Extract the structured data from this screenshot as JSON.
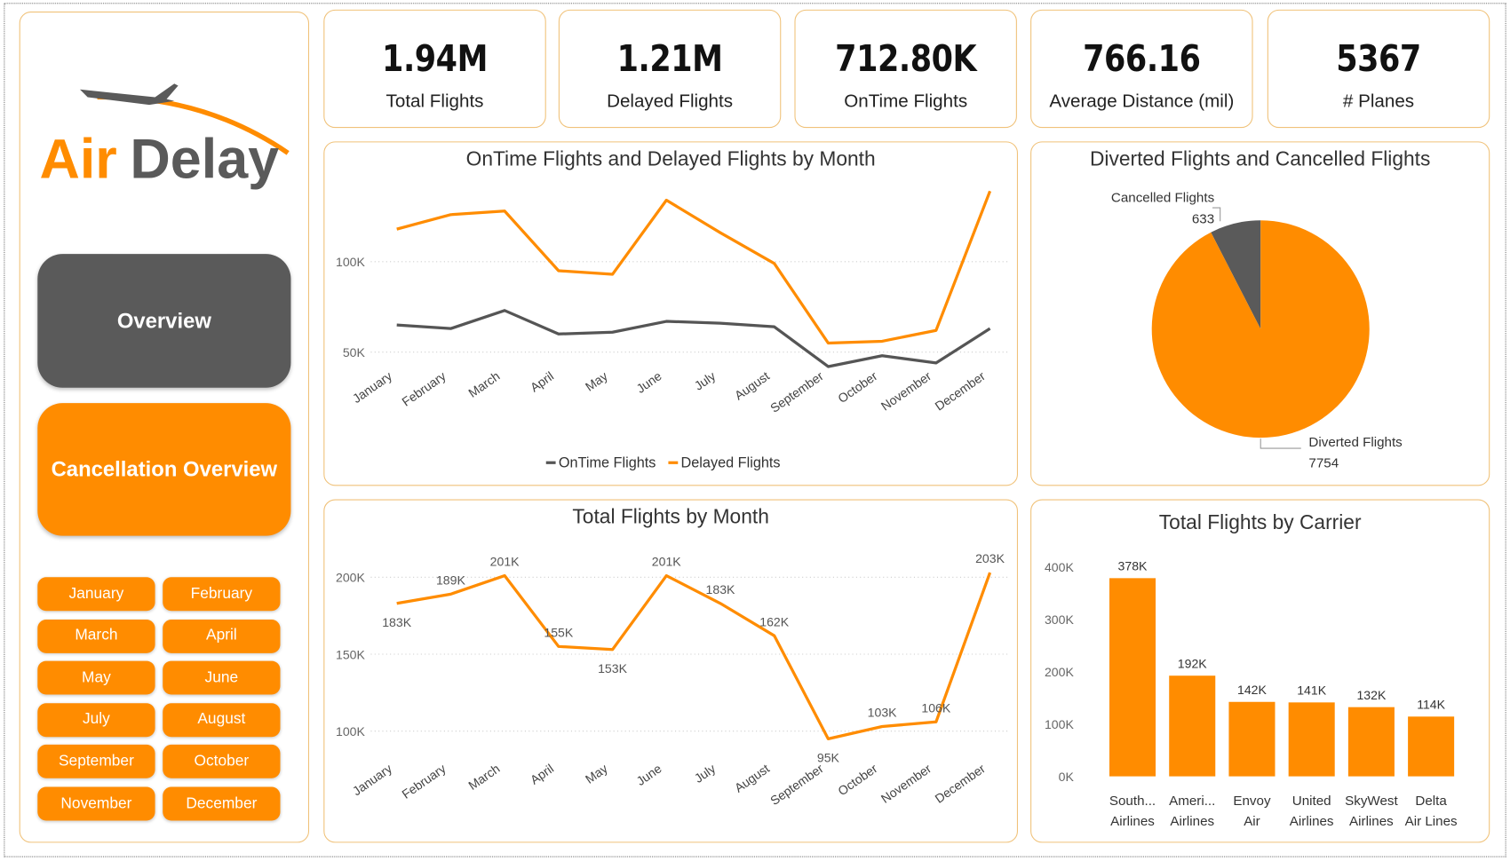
{
  "brand": {
    "logo_text_a": "Air",
    "logo_text_b": "Delay",
    "accent": "#ff8c00",
    "dark": "#5a5a5a"
  },
  "nav": {
    "overview": "Overview",
    "cancellation": "Cancellation Overview"
  },
  "months": [
    "January",
    "February",
    "March",
    "April",
    "May",
    "June",
    "July",
    "August",
    "September",
    "October",
    "November",
    "December"
  ],
  "kpis": [
    {
      "value": "1.94M",
      "label": "Total Flights"
    },
    {
      "value": "1.21M",
      "label": "Delayed Flights"
    },
    {
      "value": "712.80K",
      "label": "OnTime Flights"
    },
    {
      "value": "766.16",
      "label": "Average Distance (mil)"
    },
    {
      "value": "5367",
      "label": "# Planes"
    }
  ],
  "chart_data": [
    {
      "type": "line",
      "title": "OnTime Flights and Delayed Flights by Month",
      "categories": [
        "January",
        "February",
        "March",
        "April",
        "May",
        "June",
        "July",
        "August",
        "September",
        "October",
        "November",
        "December"
      ],
      "yticks": [
        "50K",
        "100K"
      ],
      "ytick_values": [
        50000,
        100000
      ],
      "grid": true,
      "legend": "bottom",
      "series": [
        {
          "name": "OnTime Flights",
          "color": "#555555",
          "values": [
            65000,
            63000,
            73000,
            60000,
            61000,
            67000,
            66000,
            64000,
            42000,
            48000,
            44000,
            63000
          ]
        },
        {
          "name": "Delayed Flights",
          "color": "#ff8c00",
          "values": [
            118000,
            126000,
            128000,
            95000,
            93000,
            134000,
            116000,
            99000,
            55000,
            56000,
            62000,
            139000
          ]
        }
      ]
    },
    {
      "type": "pie",
      "title": "Diverted Flights and Cancelled Flights",
      "slices": [
        {
          "label": "Cancelled Flights",
          "value": 633,
          "color": "#5a5a5a"
        },
        {
          "label": "Diverted Flights",
          "value": 7754,
          "color": "#ff8c00"
        }
      ]
    },
    {
      "type": "line",
      "title": "Total Flights by Month",
      "categories": [
        "January",
        "February",
        "March",
        "April",
        "May",
        "June",
        "July",
        "August",
        "September",
        "October",
        "November",
        "December"
      ],
      "yticks": [
        "100K",
        "150K",
        "200K"
      ],
      "ytick_values": [
        100000,
        150000,
        200000
      ],
      "grid": true,
      "series": [
        {
          "color": "#ff8c00",
          "values": [
            183000,
            189000,
            201000,
            155000,
            153000,
            201000,
            183000,
            162000,
            95000,
            103000,
            106000,
            203000
          ],
          "labels": [
            "183K",
            "189K",
            "201K",
            "155K",
            "153K",
            "201K",
            "183K",
            "162K",
            "95K",
            "103K",
            "106K",
            "203K"
          ]
        }
      ]
    },
    {
      "type": "bar",
      "title": "Total Flights by Carrier",
      "categories": [
        [
          "South...",
          "Airlines"
        ],
        [
          "Ameri...",
          "Airlines"
        ],
        [
          "Envoy",
          "Air"
        ],
        [
          "United",
          "Airlines"
        ],
        [
          "SkyWest",
          "Airlines"
        ],
        [
          "Delta",
          "Air Lines"
        ]
      ],
      "values": [
        378000,
        192000,
        142000,
        141000,
        132000,
        114000
      ],
      "labels": [
        "378K",
        "192K",
        "142K",
        "141K",
        "132K",
        "114K"
      ],
      "yticks": [
        "0K",
        "100K",
        "200K",
        "300K",
        "400K"
      ],
      "ytick_values": [
        0,
        100000,
        200000,
        300000,
        400000
      ],
      "color": "#ff8c00"
    }
  ]
}
